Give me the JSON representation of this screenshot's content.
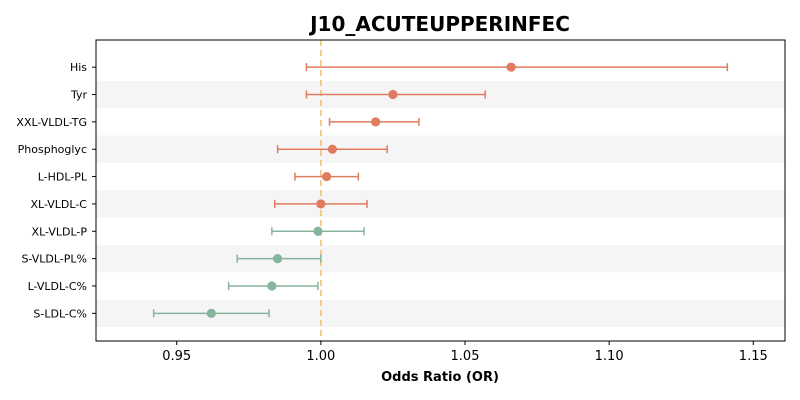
{
  "chart_data": {
    "type": "forest",
    "title": "J10_ACUTEUPPERINFEC",
    "xlabel": "Odds Ratio (OR)",
    "ylabel": "",
    "xlim": [
      0.922,
      1.161
    ],
    "xticks": [
      "0.95",
      "1.00",
      "1.05",
      "1.10",
      "1.15"
    ],
    "xtick_values": [
      0.95,
      1.0,
      1.05,
      1.1,
      1.15
    ],
    "reference_line": 1.0,
    "colors": {
      "positive": "#e07b5f",
      "negative": "#85b59c",
      "reference": "#f0c27a",
      "band": "#f5f5f5",
      "axis": "#000000"
    },
    "grid": false,
    "rows": [
      {
        "label": "His",
        "or": 1.066,
        "ci_low": 0.995,
        "ci_high": 1.141
      },
      {
        "label": "Tyr",
        "or": 1.025,
        "ci_low": 0.995,
        "ci_high": 1.057
      },
      {
        "label": "XXL-VLDL-TG",
        "or": 1.019,
        "ci_low": 1.003,
        "ci_high": 1.034
      },
      {
        "label": "Phosphoglyc",
        "or": 1.004,
        "ci_low": 0.985,
        "ci_high": 1.023
      },
      {
        "label": "L-HDL-PL",
        "or": 1.002,
        "ci_low": 0.991,
        "ci_high": 1.013
      },
      {
        "label": "XL-VLDL-C",
        "or": 1.0,
        "ci_low": 0.984,
        "ci_high": 1.016
      },
      {
        "label": "XL-VLDL-P",
        "or": 0.999,
        "ci_low": 0.983,
        "ci_high": 1.015
      },
      {
        "label": "S-VLDL-PL%",
        "or": 0.985,
        "ci_low": 0.971,
        "ci_high": 1.0
      },
      {
        "label": "L-VLDL-C%",
        "or": 0.983,
        "ci_low": 0.968,
        "ci_high": 0.999
      },
      {
        "label": "S-LDL-C%",
        "or": 0.962,
        "ci_low": 0.942,
        "ci_high": 0.982
      }
    ]
  }
}
